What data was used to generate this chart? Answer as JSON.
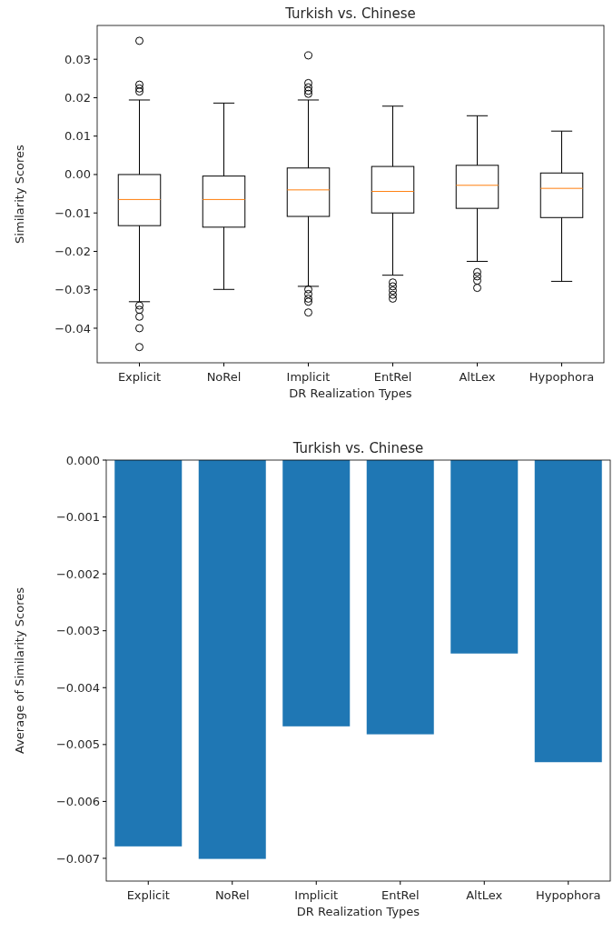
{
  "chart_data": [
    {
      "type": "box",
      "title": "Turkish vs. Chinese",
      "xlabel": "DR Realization Types",
      "ylabel": "Similarity Scores",
      "categories": [
        "Explicit",
        "NoRel",
        "Implicit",
        "EntRel",
        "AltLex",
        "Hypophora"
      ],
      "boxes": [
        {
          "low": -0.0331,
          "q1": -0.0133,
          "median": -0.0065,
          "q3": 0.0,
          "high": 0.0194,
          "outliers": [
            0.0348,
            0.0234,
            0.0224,
            0.0216,
            -0.0341,
            -0.0352,
            -0.037,
            -0.04,
            -0.0449
          ]
        },
        {
          "low": -0.0299,
          "q1": -0.0137,
          "median": -0.0065,
          "q3": -0.0004,
          "high": 0.0186
        },
        {
          "low": -0.0291,
          "q1": -0.0109,
          "median": -0.004,
          "q3": 0.0017,
          "high": 0.0194,
          "outliers": [
            0.031,
            0.0238,
            0.0227,
            0.0218,
            0.021,
            -0.0299,
            -0.0311,
            -0.0323,
            -0.0331,
            -0.0359
          ]
        },
        {
          "low": -0.0262,
          "q1": -0.01,
          "median": -0.0044,
          "q3": 0.0021,
          "high": 0.0178,
          "outliers": [
            -0.0281,
            -0.0291,
            -0.0302,
            -0.0313,
            -0.0323
          ]
        },
        {
          "low": -0.0226,
          "q1": -0.0088,
          "median": -0.0028,
          "q3": 0.0024,
          "high": 0.0153,
          "outliers": [
            -0.0254,
            -0.0265,
            -0.0276,
            -0.0295
          ]
        },
        {
          "low": -0.0278,
          "q1": -0.0112,
          "median": -0.0036,
          "q3": 0.0004,
          "high": 0.0113
        }
      ],
      "ylim": [
        -0.049,
        0.0388
      ],
      "yticks": [
        {
          "value": -0.04,
          "label": "−0.04"
        },
        {
          "value": -0.03,
          "label": "−0.03"
        },
        {
          "value": -0.02,
          "label": "−0.02"
        },
        {
          "value": -0.01,
          "label": "−0.01"
        },
        {
          "value": 0,
          "label": "0.00"
        },
        0.01,
        0.02,
        0.03
      ],
      "grid": false
    },
    {
      "type": "bar",
      "title": "Turkish vs. Chinese",
      "xlabel": "DR Realization Types",
      "ylabel": "Average of Similarity Scores",
      "categories": [
        "Explicit",
        "NoRel",
        "Implicit",
        "EntRel",
        "AltLex",
        "Hypophora"
      ],
      "values": [
        -0.00679,
        -0.00701,
        -0.00468,
        -0.00482,
        -0.0034,
        -0.00531
      ],
      "color": "#1f77b4",
      "ylim": [
        -0.0074,
        0
      ],
      "yticks": [
        {
          "value": -0.007,
          "label": "−0.007"
        },
        {
          "value": -0.006,
          "label": "−0.006"
        },
        {
          "value": -0.005,
          "label": "−0.005"
        },
        {
          "value": -0.004,
          "label": "−0.004"
        },
        {
          "value": -0.003,
          "label": "−0.003"
        },
        {
          "value": -0.002,
          "label": "−0.002"
        },
        {
          "value": -0.001,
          "label": "−0.001"
        },
        {
          "value": 0,
          "label": "0.000"
        }
      ],
      "grid": false
    }
  ]
}
